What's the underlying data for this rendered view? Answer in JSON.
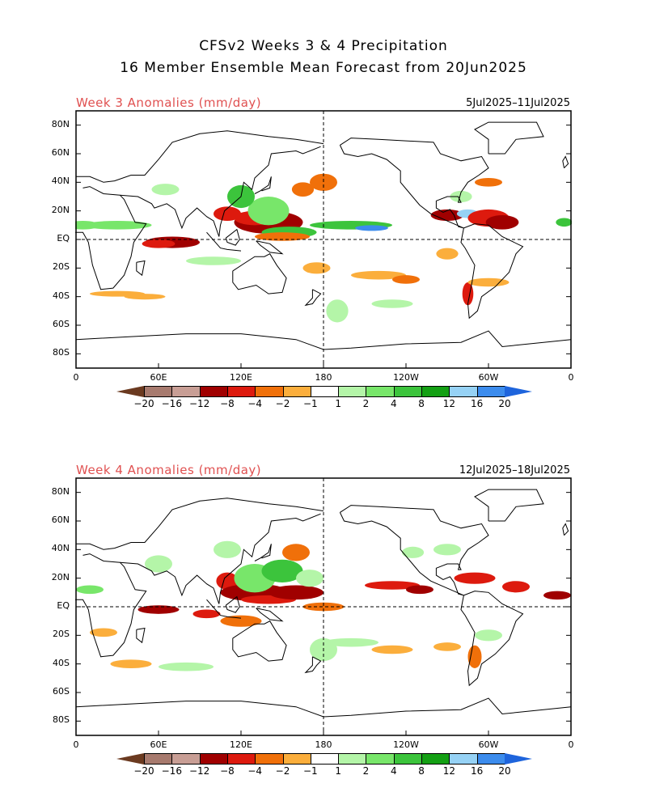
{
  "header": {
    "title_line1": "CFSv2 Weeks 3 & 4 Precipitation",
    "title_line2": "16 Member Ensemble Mean Forecast from 20Jun2025"
  },
  "panels": [
    {
      "id": "week3",
      "label": "Week 3 Anomalies (mm/day)",
      "dates": "5Jul2025–11Jul2025"
    },
    {
      "id": "week4",
      "label": "Week 4 Anomalies (mm/day)",
      "dates": "12Jul2025–18Jul2025"
    }
  ],
  "axes": {
    "lat_labels": [
      "80N",
      "60N",
      "40N",
      "20N",
      "EQ",
      "20S",
      "40S",
      "60S",
      "80S"
    ],
    "lon_labels": [
      "0",
      "60E",
      "120E",
      "180",
      "120W",
      "60W",
      "0"
    ]
  },
  "colorbar": {
    "labels": [
      "−20",
      "−16",
      "−12",
      "−8",
      "−4",
      "−2",
      "−1",
      "1",
      "2",
      "4",
      "8",
      "12",
      "16",
      "20"
    ],
    "colors": [
      "#6b3a20",
      "#a77a6e",
      "#c89e95",
      "#a00000",
      "#dd1a0e",
      "#f0700a",
      "#fbae3c",
      "#ffffff",
      "#b4f5a8",
      "#78e66a",
      "#3cc43c",
      "#14a014",
      "#96d2f5",
      "#3c8ced",
      "#1e64dc"
    ]
  },
  "colors": {
    "title_red": "#e05050",
    "coast": "#000000"
  }
}
